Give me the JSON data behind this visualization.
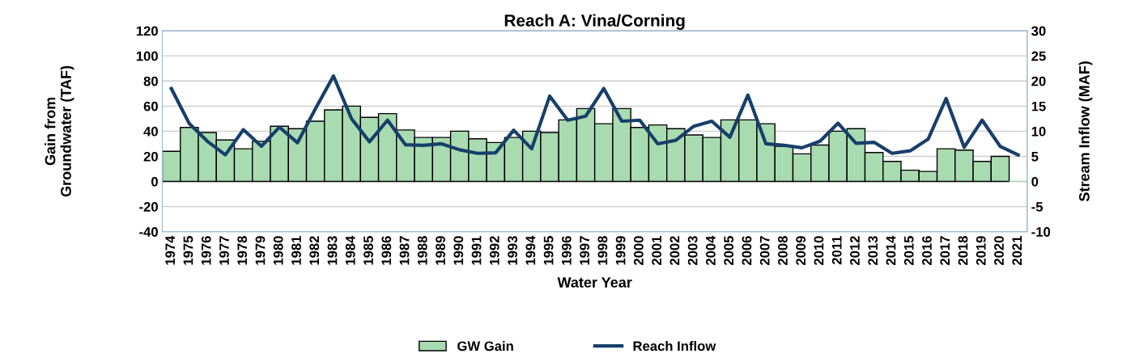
{
  "chart_data": {
    "type": "bar",
    "title": "Reach A: Vina/Corning",
    "xlabel": "Water Year",
    "ylabel": "Gain from\nGroundwater (TAF)",
    "y2label": "Stream Inflow (MAF)",
    "categories": [
      "1974",
      "1975",
      "1976",
      "1977",
      "1978",
      "1979",
      "1980",
      "1981",
      "1982",
      "1983",
      "1984",
      "1985",
      "1986",
      "1987",
      "1988",
      "1989",
      "1990",
      "1991",
      "1992",
      "1993",
      "1994",
      "1995",
      "1996",
      "1997",
      "1998",
      "1999",
      "2000",
      "2001",
      "2002",
      "2003",
      "2004",
      "2005",
      "2006",
      "2007",
      "2008",
      "2009",
      "2010",
      "2011",
      "2012",
      "2013",
      "2014",
      "2015",
      "2016",
      "2017",
      "2018",
      "2019",
      "2020",
      "2021"
    ],
    "series": [
      {
        "name": "GW Gain",
        "color": "#a9dbb1",
        "values": [
          24,
          43,
          39,
          33,
          26,
          32,
          44,
          42,
          48,
          57,
          60,
          51,
          54,
          41,
          35,
          35,
          40,
          34,
          31,
          35,
          40,
          39,
          49,
          58,
          46,
          58,
          43,
          45,
          42,
          37,
          35,
          49,
          49,
          46,
          28,
          22,
          29,
          40,
          42,
          23,
          16,
          9,
          8,
          26,
          25,
          16,
          20,
          0
        ]
      },
      {
        "name": "Reach Inflow",
        "type": "line",
        "axis": "y2",
        "color": "#173f6a",
        "values": [
          18.5,
          11.5,
          8,
          5.3,
          10.3,
          7,
          10.8,
          7.7,
          14.5,
          21,
          12.5,
          7.9,
          12.2,
          7.3,
          7.2,
          7.5,
          6.3,
          5.6,
          5.7,
          10.2,
          6.5,
          17,
          12.2,
          13,
          18.5,
          12,
          12.2,
          7.5,
          8.2,
          11,
          12,
          8.8,
          17.2,
          7.5,
          7.2,
          6.7,
          8,
          11.6,
          7.6,
          7.8,
          5.6,
          6.1,
          8.4,
          16.5,
          6.8,
          12.2,
          7,
          5.3
        ]
      }
    ],
    "ylim": [
      -40,
      120
    ],
    "yticks": [
      -40,
      -20,
      0,
      20,
      40,
      60,
      80,
      100,
      120
    ],
    "y2lim": [
      -10,
      30
    ],
    "y2ticks": [
      -10,
      -5,
      0,
      5,
      10,
      15,
      20,
      25,
      30
    ],
    "grid": "y",
    "legend": "bottom",
    "marker": "none",
    "line_style": "solid"
  }
}
